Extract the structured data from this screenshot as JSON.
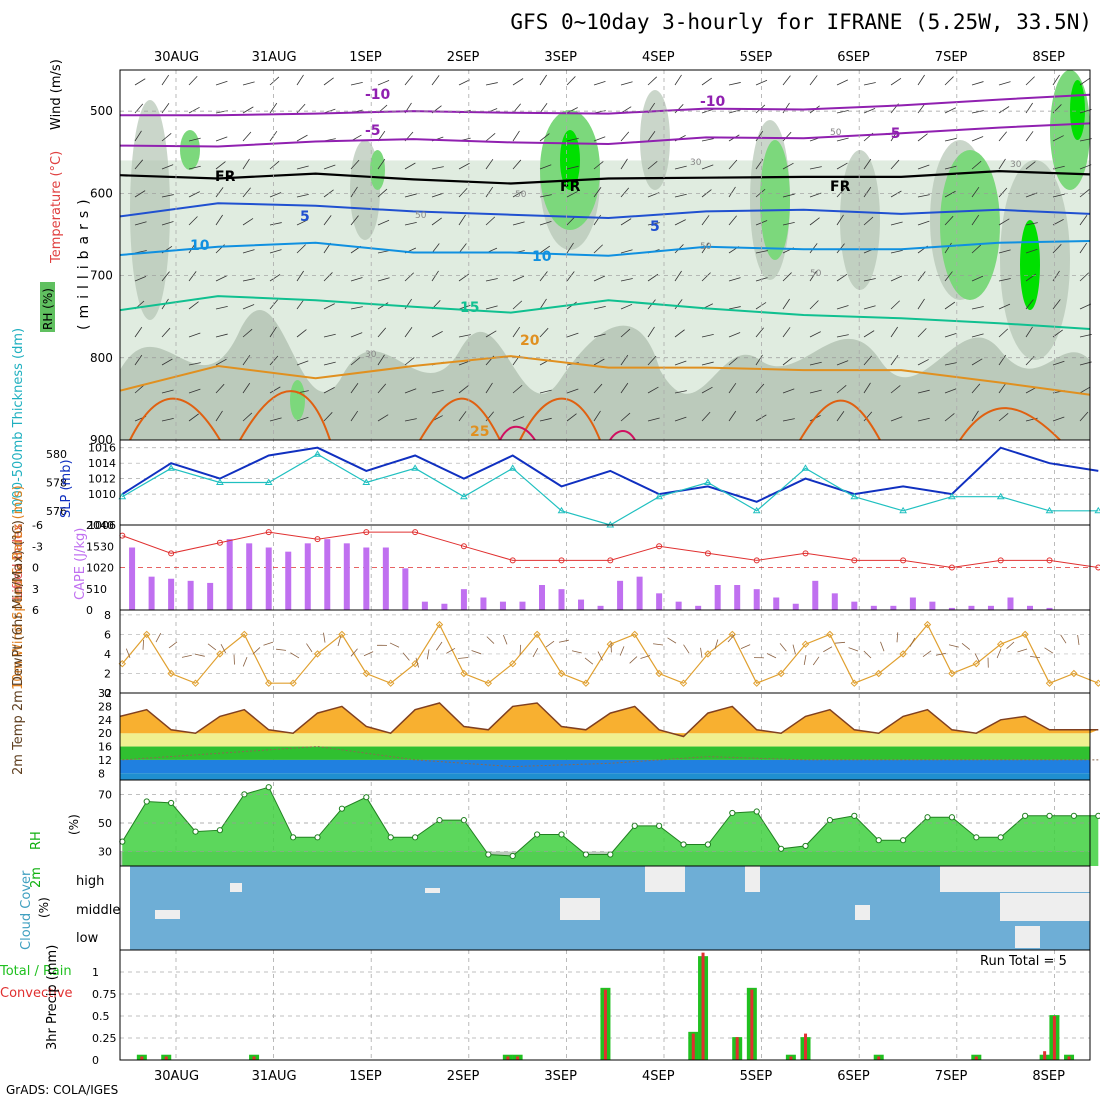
{
  "title": "GFS 0~10day 3-hourly for IFRANE (5.25W, 33.5N)",
  "credit": "GrADS: COLA/IGES",
  "date_labels": [
    "30AUG",
    "31AUG",
    "1SEP",
    "2SEP",
    "3SEP",
    "4SEP",
    "5SEP",
    "6SEP",
    "7SEP",
    "8SEP"
  ],
  "colors": {
    "rh_dark": "#b4c4b4",
    "rh_light": "#e0ece0",
    "rh_green": "#7cd87c",
    "rh_bright": "#00e000",
    "isotherm_purple": "#9020b0",
    "isotherm_blue": "#2050d0",
    "isotherm_lightblue": "#1090e0",
    "isotherm_teal": "#10c090",
    "isotherm_orange": "#e09020",
    "isotherm_dark_orange": "#e06010",
    "slp": "#1030c0",
    "thickness": "#20c0c0",
    "cape": "#c070f0",
    "lifted_index": "#e03030",
    "wind_speed": "#e0a030",
    "rh2m": "#10d010",
    "cloud": "#6eaed6",
    "precip_total": "#20c020",
    "precip_convective": "#e03030"
  },
  "chart_data": [
    {
      "type": "heatmap",
      "panel": "upper-air",
      "ylabel": "(millibars)",
      "legend_labels": [
        "Wind (m/s)",
        "Temperature (°C)",
        "RH (%)"
      ],
      "y_ticks": [
        500,
        600,
        700,
        800,
        900
      ],
      "ylim": [
        450,
        900
      ],
      "isotherm_labels": [
        "-10",
        "-5",
        "FR",
        "5",
        "10",
        "15",
        "20",
        "25",
        "-10",
        "-5",
        "FR",
        "5",
        "10",
        "FR"
      ],
      "rh_contour_labels": [
        "50",
        "30",
        "50",
        "50",
        "30",
        "50",
        "30",
        "50"
      ],
      "isotherms": [
        {
          "label": "-10",
          "days": [
            0,
            1,
            2,
            3,
            4,
            5,
            6,
            7,
            8,
            9,
            10
          ],
          "p": [
            505,
            505,
            503,
            500,
            502,
            503,
            497,
            498,
            493,
            486,
            480
          ]
        },
        {
          "label": "-5",
          "days": [
            0,
            1,
            2,
            3,
            4,
            5,
            6,
            7,
            8,
            9,
            10
          ],
          "p": [
            542,
            543,
            537,
            534,
            538,
            540,
            532,
            533,
            527,
            520,
            515
          ]
        },
        {
          "label": "FR",
          "days": [
            0,
            1,
            2,
            3,
            4,
            5,
            6,
            7,
            8,
            9,
            10
          ],
          "p": [
            578,
            582,
            576,
            583,
            588,
            582,
            581,
            580,
            580,
            573,
            577
          ]
        },
        {
          "label": "5",
          "days": [
            0,
            1,
            2,
            3,
            4,
            5,
            6,
            7,
            8,
            9,
            10
          ],
          "p": [
            628,
            612,
            615,
            622,
            626,
            630,
            622,
            620,
            625,
            620,
            625
          ]
        },
        {
          "label": "10",
          "days": [
            0,
            1,
            2,
            3,
            4,
            5,
            6,
            7,
            8,
            9,
            10
          ],
          "p": [
            675,
            665,
            660,
            672,
            672,
            676,
            665,
            668,
            668,
            660,
            658
          ]
        },
        {
          "label": "15",
          "days": [
            0,
            1,
            2,
            3,
            4,
            5,
            6,
            7,
            8,
            9,
            10
          ],
          "p": [
            742,
            725,
            730,
            738,
            745,
            730,
            740,
            748,
            752,
            758,
            765
          ]
        },
        {
          "label": "20",
          "days": [
            0,
            1,
            2,
            3,
            4,
            5,
            6,
            7,
            8,
            9,
            10
          ],
          "p": [
            840,
            810,
            825,
            810,
            798,
            812,
            812,
            815,
            815,
            830,
            845
          ]
        }
      ]
    },
    {
      "type": "line",
      "panel": "slp-thickness",
      "series": [
        {
          "name": "SLP (mb)",
          "y_ticks": [
            1006,
            1010,
            1012,
            1014,
            1016
          ],
          "days": [
            0,
            0.5,
            1,
            1.5,
            2,
            2.5,
            3,
            3.5,
            4,
            4.5,
            5,
            5.5,
            6,
            6.5,
            7,
            7.5,
            8,
            8.5,
            9,
            9.5,
            10
          ],
          "values": [
            1010,
            1014,
            1012,
            1015,
            1016,
            1013,
            1015,
            1012,
            1015,
            1011,
            1013,
            1010,
            1011,
            1009,
            1012,
            1010,
            1011,
            1010,
            1016,
            1014,
            1013
          ]
        },
        {
          "name": "1000-500mb Thickness (dm)",
          "y_ticks": [
            576,
            578,
            580
          ],
          "days": [
            0,
            0.5,
            1,
            1.5,
            2,
            2.5,
            3,
            3.5,
            4,
            4.5,
            5,
            5.5,
            6,
            6.5,
            7,
            7.5,
            8,
            8.5,
            9,
            9.5,
            10
          ],
          "values": [
            577,
            579,
            578,
            578,
            580,
            578,
            579,
            577,
            579,
            576,
            575,
            577,
            578,
            576,
            579,
            577,
            576,
            577,
            577,
            576,
            576
          ]
        }
      ]
    },
    {
      "type": "bar",
      "panel": "cape-lifted-index",
      "series": [
        {
          "name": "CAPE (J/kg)",
          "y_ticks": [
            0,
            510,
            1020,
            1530,
            2040
          ],
          "days": [
            0.1,
            0.3,
            0.5,
            0.7,
            0.9,
            1.1,
            1.3,
            1.5,
            1.7,
            1.9,
            2.1,
            2.3,
            2.5,
            2.7,
            2.9,
            3.1,
            3.3,
            3.5,
            3.7,
            3.9,
            4.1,
            4.3,
            4.5,
            4.7,
            4.9,
            5.1,
            5.3,
            5.5,
            5.7,
            5.9,
            6.1,
            6.3,
            6.5,
            6.7,
            6.9,
            7.1,
            7.3,
            7.5,
            7.7,
            7.9,
            8.1,
            8.3,
            8.5,
            8.7,
            8.9,
            9.1,
            9.3,
            9.5,
            9.7,
            9.9
          ],
          "values": [
            1500,
            800,
            750,
            700,
            650,
            1700,
            1600,
            1500,
            1400,
            1600,
            1700,
            1600,
            1500,
            1500,
            1000,
            200,
            150,
            500,
            300,
            200,
            200,
            600,
            500,
            250,
            100,
            700,
            800,
            400,
            200,
            100,
            600,
            600,
            500,
            300,
            150,
            700,
            400,
            200,
            100,
            100,
            300,
            200,
            50,
            100,
            100,
            300,
            100,
            50,
            0,
            0
          ]
        },
        {
          "name": "Lifted Index",
          "y_ticks": [
            -6,
            -3,
            0,
            3,
            6
          ],
          "days": [
            0,
            0.5,
            1,
            1.5,
            2,
            2.5,
            3,
            3.5,
            4,
            4.5,
            5,
            5.5,
            6,
            6.5,
            7,
            7.5,
            8,
            8.5,
            9,
            9.5,
            10
          ],
          "values": [
            -4.5,
            -2,
            -3.5,
            -5,
            -4,
            -5,
            -5,
            -3,
            -1,
            -1,
            -1,
            -3,
            -2,
            -1,
            -2,
            -1,
            -1,
            0,
            -1,
            -1,
            0
          ]
        }
      ]
    },
    {
      "type": "line",
      "panel": "10m-wind",
      "ylabel": "10m Wind Speed & Barbs (m/s)",
      "y_ticks": [
        0,
        2,
        4,
        6,
        8
      ],
      "series": [
        {
          "name": "Speed",
          "days": [
            0,
            0.25,
            0.5,
            0.75,
            1,
            1.25,
            1.5,
            1.75,
            2,
            2.25,
            2.5,
            2.75,
            3,
            3.25,
            3.5,
            3.75,
            4,
            4.25,
            4.5,
            4.75,
            5,
            5.25,
            5.5,
            5.75,
            6,
            6.25,
            6.5,
            6.75,
            7,
            7.25,
            7.5,
            7.75,
            8,
            8.25,
            8.5,
            8.75,
            9,
            9.25,
            9.5,
            9.75,
            10
          ],
          "values": [
            3,
            6,
            2,
            1,
            4,
            6,
            1,
            1,
            4,
            6,
            2,
            1,
            3,
            7,
            2,
            1,
            3,
            6,
            2,
            1,
            5,
            6,
            2,
            1,
            4,
            6,
            1,
            2,
            5,
            6,
            1,
            2,
            4,
            7,
            2,
            3,
            5,
            6,
            1,
            2,
            1
          ]
        }
      ]
    },
    {
      "type": "area",
      "panel": "2m-temp",
      "ylabel": "2m Temp 2m DewPt (6hr Min/Max) (°C)",
      "y_ticks": [
        8,
        12,
        16,
        20,
        24,
        28,
        32
      ],
      "series": [
        {
          "name": "2m Temp",
          "days": [
            0,
            0.25,
            0.5,
            0.75,
            1,
            1.25,
            1.5,
            1.75,
            2,
            2.25,
            2.5,
            2.75,
            3,
            3.25,
            3.5,
            3.75,
            4,
            4.25,
            4.5,
            4.75,
            5,
            5.25,
            5.5,
            5.75,
            6,
            6.25,
            6.5,
            6.75,
            7,
            7.25,
            7.5,
            7.75,
            8,
            8.25,
            8.5,
            8.75,
            9,
            9.25,
            9.5,
            9.75,
            10
          ],
          "values": [
            25,
            27,
            21,
            20,
            25,
            27,
            21,
            20,
            26,
            28,
            22,
            20,
            27,
            29,
            22,
            21,
            28,
            29,
            22,
            21,
            26,
            28,
            21,
            19,
            26,
            28,
            21,
            20,
            25,
            27,
            21,
            20,
            25,
            27,
            21,
            20,
            24,
            25,
            21,
            21,
            21
          ]
        },
        {
          "name": "2m DewPt",
          "days": [
            0,
            1,
            2,
            3,
            4,
            5,
            6,
            7,
            8,
            9,
            10
          ],
          "values": [
            12,
            14,
            16,
            12,
            10,
            11,
            13,
            12,
            12,
            12,
            12
          ]
        }
      ]
    },
    {
      "type": "area",
      "panel": "2m-rh",
      "ylabel": "2m RH (%)",
      "y_ticks": [
        30,
        50,
        70
      ],
      "series": [
        {
          "name": "2m RH",
          "days": [
            0,
            0.25,
            0.5,
            0.75,
            1,
            1.25,
            1.5,
            1.75,
            2,
            2.25,
            2.5,
            2.75,
            3,
            3.25,
            3.5,
            3.75,
            4,
            4.25,
            4.5,
            4.75,
            5,
            5.25,
            5.5,
            5.75,
            6,
            6.25,
            6.5,
            6.75,
            7,
            7.25,
            7.5,
            7.75,
            8,
            8.25,
            8.5,
            8.75,
            9,
            9.25,
            9.5,
            9.75,
            10
          ],
          "values": [
            37,
            65,
            64,
            44,
            45,
            70,
            75,
            40,
            40,
            60,
            68,
            40,
            40,
            52,
            52,
            28,
            27,
            42,
            42,
            28,
            28,
            48,
            48,
            35,
            35,
            57,
            58,
            32,
            34,
            52,
            55,
            38,
            38,
            54,
            54,
            40,
            40,
            55,
            55,
            55,
            55
          ]
        }
      ]
    },
    {
      "type": "heatmap",
      "panel": "cloud-cover",
      "ylabel": "Cloud Cover (%)",
      "levels": [
        "high",
        "middle",
        "low"
      ],
      "background_coverage": 100
    },
    {
      "type": "bar",
      "panel": "precip",
      "ylabel": "3hr Precip (mm)",
      "legend_labels": [
        "Total / Rain",
        "Convective"
      ],
      "annotation": "Run Total = 5",
      "y_ticks": [
        "0",
        "0.25",
        "0.5",
        "0.75",
        "1"
      ],
      "ylim": [
        0,
        1.25
      ],
      "series": [
        {
          "name": "Total",
          "days": [
            0.2,
            0.45,
            1.35,
            3.95,
            4.05,
            4.95,
            5.85,
            5.95,
            6.3,
            6.45,
            6.85,
            7.0,
            7.75,
            8.75,
            9.45,
            9.55,
            9.7
          ],
          "values": [
            0.06,
            0.06,
            0.06,
            0.06,
            0.06,
            0.82,
            0.32,
            1.18,
            0.26,
            0.82,
            0.06,
            0.26,
            0.06,
            0.06,
            0.06,
            0.51,
            0.06
          ]
        },
        {
          "name": "Convective",
          "days": [
            0.2,
            0.45,
            1.35,
            3.95,
            4.05,
            4.95,
            5.85,
            5.95,
            6.3,
            6.45,
            6.85,
            7.0,
            7.75,
            8.75,
            9.45,
            9.55,
            9.7
          ],
          "values": [
            0.04,
            0.04,
            0.04,
            0.04,
            0.04,
            0.8,
            0.3,
            1.22,
            0.26,
            0.8,
            0.04,
            0.3,
            0.04,
            0.04,
            0.1,
            0.5,
            0.04
          ]
        }
      ]
    }
  ]
}
